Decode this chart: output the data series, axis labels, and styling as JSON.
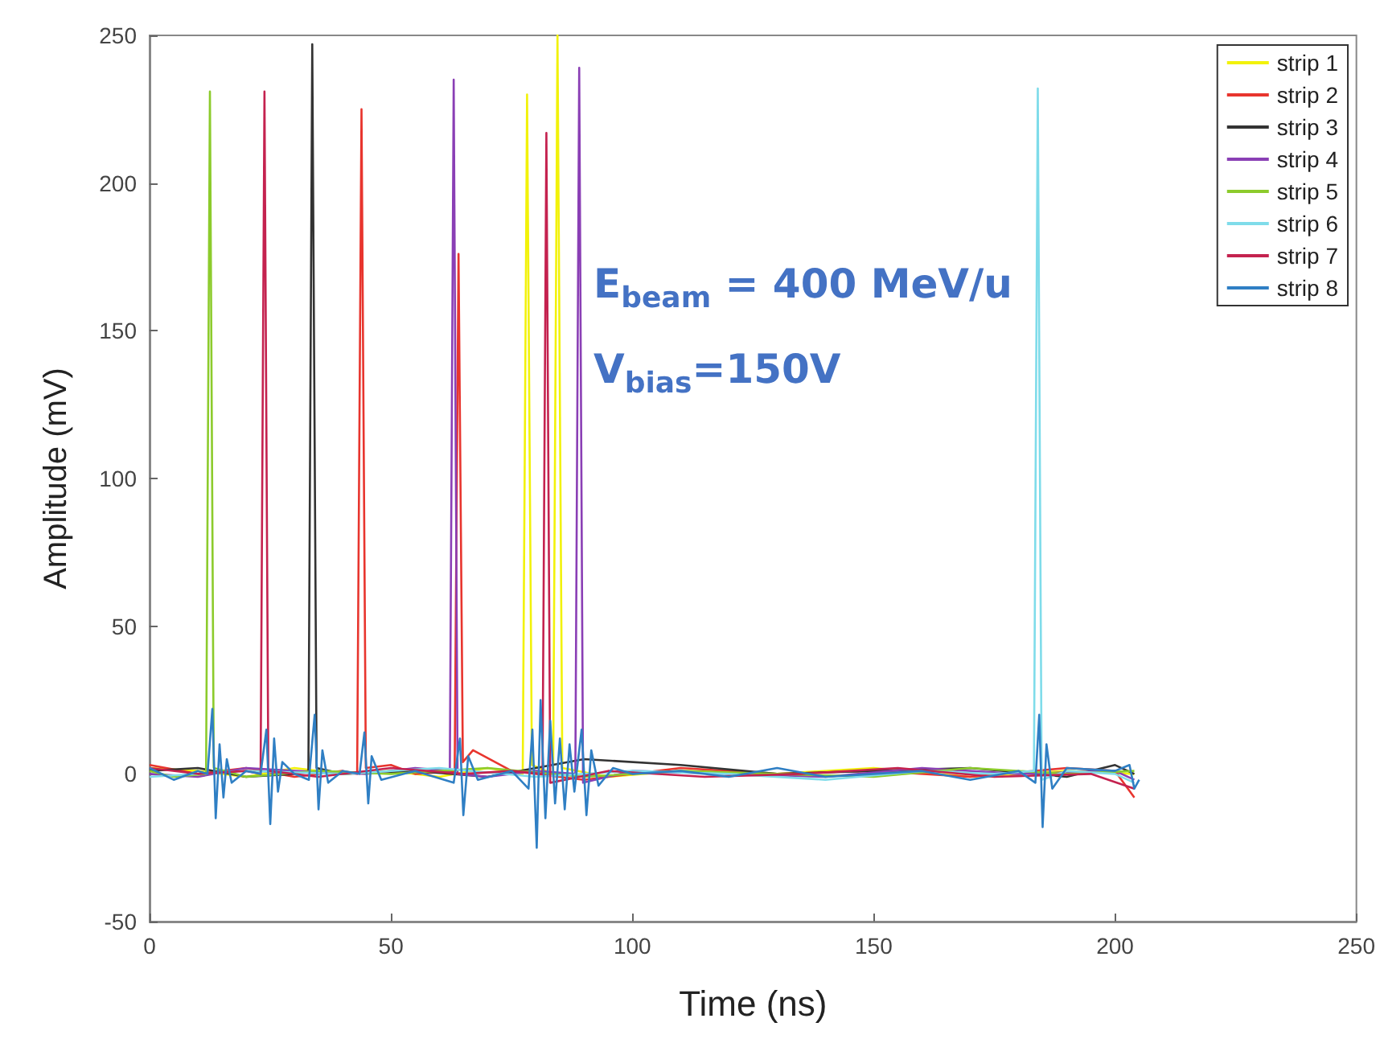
{
  "chart_data": {
    "type": "line",
    "xlabel": "Time (ns)",
    "ylabel": "Amplitude (mV)",
    "annotations": [
      "E$_{beam}$ = 400 MeV/u",
      "V$_{bias}$=150V"
    ],
    "xlim": [
      0,
      250
    ],
    "xticks": [
      0,
      50,
      100,
      150,
      200,
      250
    ],
    "ylim": [
      -50,
      250
    ],
    "yticks": [
      -50,
      0,
      50,
      100,
      150,
      200,
      250
    ],
    "grid": false,
    "legend": "top right",
    "line_style": "solid",
    "series": [
      {
        "name": "strip 1",
        "color": "#f2f20a",
        "x": [
          0,
          10,
          20,
          30,
          40,
          50,
          60,
          70,
          77.3,
          78.2,
          79.2,
          83.6,
          84.5,
          85.5,
          95,
          110,
          130,
          150,
          170,
          190,
          204
        ],
        "values": [
          2,
          1,
          -1,
          2,
          0,
          1,
          -1,
          2,
          0,
          230,
          3,
          0,
          250,
          2,
          -1,
          1,
          0,
          2,
          -1,
          1,
          0
        ]
      },
      {
        "name": "strip 2",
        "color": "#e8352e",
        "x": [
          0,
          10,
          20,
          30,
          40,
          43,
          43.9,
          44.8,
          50,
          55,
          63.2,
          64,
          64.9,
          67,
          75,
          90,
          110,
          130,
          150,
          170,
          190,
          200,
          204
        ],
        "values": [
          3,
          0,
          2,
          -1,
          1,
          0,
          225,
          2,
          3,
          0,
          1,
          176,
          4,
          8,
          1,
          -2,
          2,
          0,
          1,
          -1,
          2,
          1,
          -8
        ]
      },
      {
        "name": "strip 3",
        "color": "#333333",
        "x": [
          0,
          10,
          20,
          30,
          32.9,
          33.7,
          34.6,
          40,
          55,
          70,
          90,
          110,
          130,
          150,
          170,
          190,
          200,
          204
        ],
        "values": [
          1,
          2,
          -1,
          0,
          1,
          247,
          2,
          0,
          1,
          -1,
          5,
          3,
          0,
          1,
          2,
          -1,
          3,
          0
        ]
      },
      {
        "name": "strip 4",
        "color": "#8a3fb5",
        "x": [
          0,
          10,
          20,
          30,
          45,
          55,
          62.2,
          63,
          63.8,
          70,
          80,
          88.2,
          89,
          89.8,
          100,
          120,
          140,
          160,
          180,
          200,
          204
        ],
        "values": [
          0,
          -1,
          2,
          1,
          0,
          2,
          1,
          235,
          0,
          -1,
          1,
          0,
          239,
          -3,
          1,
          0,
          -1,
          2,
          0,
          1,
          -2
        ]
      },
      {
        "name": "strip 5",
        "color": "#8ccb2c",
        "x": [
          0,
          5,
          11.7,
          12.5,
          13.3,
          20,
          35,
          50,
          70,
          90,
          110,
          130,
          150,
          170,
          190,
          204
        ],
        "values": [
          1,
          -1,
          0,
          231,
          2,
          -1,
          1,
          0,
          2,
          -1,
          1,
          0,
          -1,
          2,
          0,
          1
        ]
      },
      {
        "name": "strip 6",
        "color": "#7fdcea",
        "x": [
          0,
          20,
          40,
          60,
          80,
          100,
          120,
          140,
          160,
          175,
          183.2,
          184,
          184.8,
          190,
          200,
          204
        ],
        "values": [
          -1,
          1,
          0,
          2,
          -1,
          1,
          0,
          -2,
          1,
          0,
          1,
          232,
          -2,
          1,
          0,
          -3
        ]
      },
      {
        "name": "strip 7",
        "color": "#c4224f",
        "x": [
          0,
          10,
          20,
          23,
          23.8,
          24.6,
          35,
          50,
          65,
          75,
          81.4,
          82.2,
          83,
          95,
          115,
          135,
          155,
          175,
          195,
          204
        ],
        "values": [
          2,
          0,
          1,
          0,
          231,
          1,
          -1,
          2,
          0,
          1,
          0,
          217,
          -3,
          1,
          -1,
          0,
          2,
          -1,
          0,
          -5
        ]
      },
      {
        "name": "strip 8",
        "color": "#2f7fc4",
        "x": [
          0,
          5,
          10,
          12,
          13,
          13.7,
          14.5,
          15.3,
          16,
          17,
          20,
          23,
          24.2,
          25,
          25.8,
          26.6,
          27.5,
          30,
          33,
          34.2,
          35,
          35.8,
          37,
          40,
          43.5,
          44.5,
          45.3,
          46,
          48,
          55,
          63,
          64.3,
          65,
          66,
          68,
          75,
          78.5,
          79.3,
          80.2,
          81,
          82,
          83,
          84,
          85,
          86,
          87,
          88,
          89.5,
          90.5,
          91.5,
          93,
          96,
          100,
          110,
          120,
          130,
          140,
          150,
          160,
          170,
          180,
          183.5,
          184.3,
          185,
          185.8,
          187,
          190,
          200,
          203,
          204,
          205
        ],
        "values": [
          2,
          -2,
          1,
          0,
          22,
          -15,
          10,
          -8,
          5,
          -3,
          1,
          0,
          15,
          -17,
          12,
          -6,
          4,
          0,
          -2,
          20,
          -12,
          8,
          -3,
          1,
          0,
          14,
          -10,
          6,
          -2,
          1,
          -3,
          12,
          -14,
          6,
          -2,
          1,
          -5,
          15,
          -25,
          25,
          -15,
          18,
          -10,
          12,
          -12,
          10,
          -6,
          15,
          -14,
          8,
          -4,
          2,
          0,
          1,
          -1,
          2,
          -1,
          0,
          1,
          -2,
          1,
          -3,
          20,
          -18,
          10,
          -5,
          2,
          1,
          3,
          -5,
          -2
        ]
      }
    ]
  }
}
